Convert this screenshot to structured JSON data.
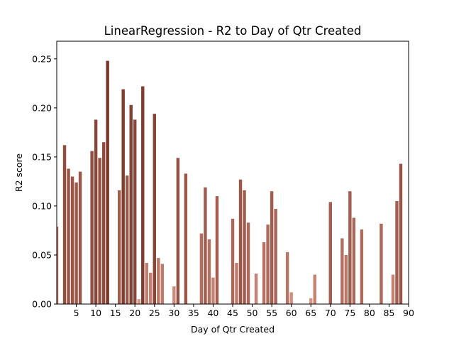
{
  "chart_data": {
    "type": "bar",
    "title": "LinearRegression - R2 to Day of Qtr Created",
    "xlabel": "Day of Qtr Created",
    "ylabel": "R2 score",
    "xlim": [
      0,
      90
    ],
    "ylim": [
      0,
      0.268
    ],
    "xticks": [
      5,
      10,
      15,
      20,
      25,
      30,
      35,
      40,
      45,
      50,
      55,
      60,
      65,
      70,
      75,
      80,
      85,
      90
    ],
    "xtick_labels": [
      "5",
      "10",
      "15",
      "20",
      "25",
      "30",
      "35",
      "40",
      "45",
      "50",
      "55",
      "60",
      "65",
      "70",
      "75",
      "80",
      "85",
      "90"
    ],
    "yticks": [
      0.0,
      0.05,
      0.1,
      0.15,
      0.2,
      0.25
    ],
    "ytick_labels": [
      "0.00",
      "0.05",
      "0.10",
      "0.15",
      "0.20",
      "0.25"
    ],
    "grid": false,
    "colormap": "value-shaded (light salmon for low R2, dark brown for high R2)",
    "colors": {
      "low": "#e3a090",
      "high": "#7a3528"
    },
    "x": [
      0,
      2,
      3,
      4,
      5,
      6,
      9,
      10,
      11,
      12,
      13,
      16,
      17,
      18,
      19,
      20,
      21,
      22,
      23,
      24,
      25,
      26,
      27,
      30,
      31,
      33,
      37,
      38,
      39,
      40,
      41,
      45,
      46,
      47,
      48,
      49,
      51,
      53,
      54,
      55,
      56,
      59,
      60,
      65,
      66,
      70,
      73,
      74,
      75,
      76,
      78,
      83,
      86,
      87,
      88
    ],
    "values": [
      0.079,
      0.162,
      0.138,
      0.13,
      0.124,
      0.135,
      0.156,
      0.188,
      0.149,
      0.165,
      0.248,
      0.116,
      0.219,
      0.131,
      0.203,
      0.188,
      0.005,
      0.222,
      0.042,
      0.032,
      0.194,
      0.047,
      0.041,
      0.018,
      0.149,
      0.133,
      0.072,
      0.119,
      0.066,
      0.027,
      0.11,
      0.087,
      0.042,
      0.127,
      0.116,
      0.083,
      0.031,
      0.063,
      0.081,
      0.115,
      0.097,
      0.053,
      0.012,
      0.006,
      0.03,
      0.104,
      0.067,
      0.05,
      0.115,
      0.088,
      0.076,
      0.082,
      0.03,
      0.105,
      0.143
    ]
  }
}
